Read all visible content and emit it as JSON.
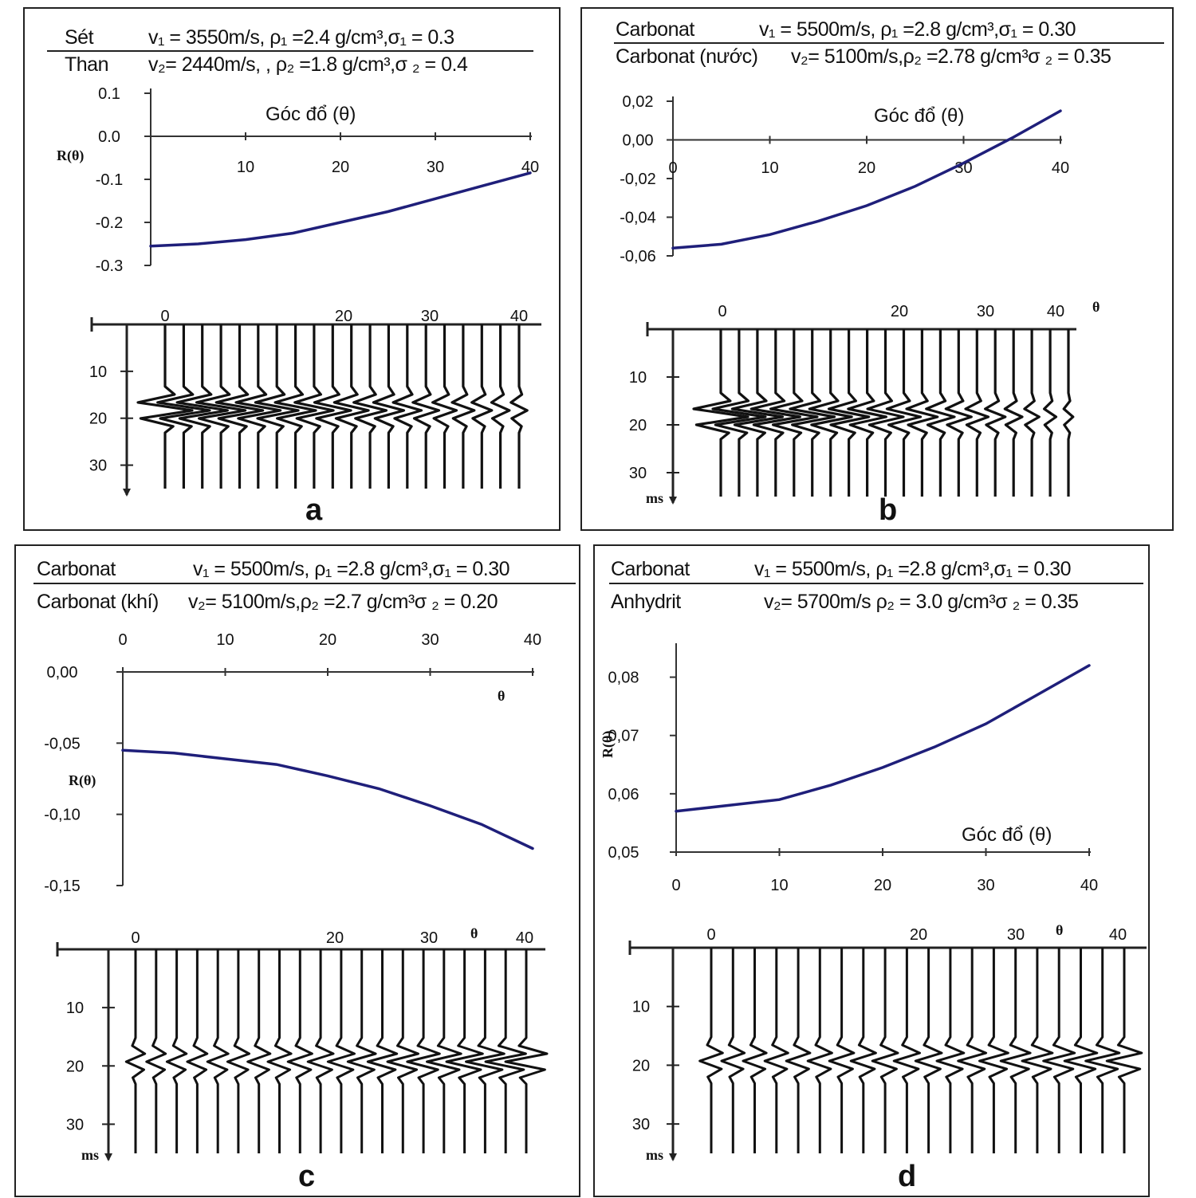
{
  "panels": [
    {
      "letter": "a",
      "upper": {
        "name": "Sét",
        "params": "v₁ = 3550m/s,  ρ₁ =2.4 g/cm³,σ₁ = 0.3"
      },
      "lower": {
        "name": "Than",
        "params": "v₂= 2440m/s, ,  ρ₂ =1.8 g/cm³,σ ₂ = 0.4"
      },
      "x_label": "Góc đổ (θ)",
      "y_label": "R(θ)",
      "y_tick_labels": [
        "0.1",
        "0.0",
        "-0.1",
        "-0.2",
        "-0.3"
      ],
      "x_tick_labels": [
        "10",
        "20",
        "30",
        "40"
      ],
      "trace_tick_labels": [
        "0",
        "20",
        "30",
        "40"
      ],
      "time_tick_labels": [
        "10",
        "20",
        "30"
      ]
    },
    {
      "letter": "b",
      "upper": {
        "name": "Carbonat",
        "params": "v₁ = 5500m/s,  ρ₁ =2.8 g/cm³,σ₁ = 0.30"
      },
      "lower": {
        "name": "Carbonat (nước)",
        "params": "v₂= 5100m/s,ρ₂ =2.78 g/cm³σ ₂ = 0.35"
      },
      "x_label": "Góc đổ (θ)",
      "y_tick_labels": [
        "0,02",
        "0,00",
        "-0,02",
        "-0,04",
        "-0,06"
      ],
      "x_tick_labels": [
        "0",
        "10",
        "20",
        "30",
        "40"
      ],
      "trace_tick_labels": [
        "0",
        "20",
        "30",
        "40"
      ],
      "trace_axis_label": "θ",
      "time_tick_labels": [
        "10",
        "20",
        "30"
      ],
      "time_unit": "ms"
    },
    {
      "letter": "c",
      "upper": {
        "name": "Carbonat",
        "params": "v₁ = 5500m/s,  ρ₁ =2.8 g/cm³,σ₁ = 0.30"
      },
      "lower": {
        "name": "Carbonat (khí)",
        "params": "v₂= 5100m/s,ρ₂ =2.7 g/cm³σ ₂ = 0.20"
      },
      "x_label": "θ",
      "y_label": "R(θ)",
      "y_tick_labels": [
        "0,00",
        "-0,05",
        "-0,10",
        "-0,15"
      ],
      "x_tick_labels": [
        "0",
        "10",
        "20",
        "30",
        "40"
      ],
      "trace_tick_labels": [
        "0",
        "20",
        "30",
        "40"
      ],
      "trace_axis_label": "θ",
      "time_tick_labels": [
        "10",
        "20",
        "30"
      ],
      "time_unit": "ms"
    },
    {
      "letter": "d",
      "upper": {
        "name": "Carbonat",
        "params": "v₁ = 5500m/s,  ρ₁ =2.8 g/cm³,σ₁ = 0.30"
      },
      "lower": {
        "name": "Anhydrit",
        "params": "v₂= 5700m/s ρ₂ = 3.0 g/cm³σ ₂ = 0.35"
      },
      "x_label": "Góc đổ (θ)",
      "y_label": "R(θ)",
      "y_tick_labels": [
        "0,08",
        "0,07",
        "0,06",
        "0,05"
      ],
      "x_tick_labels": [
        "0",
        "10",
        "20",
        "30",
        "40"
      ],
      "trace_tick_labels": [
        "0",
        "20",
        "30",
        "40"
      ],
      "trace_axis_label": "θ",
      "time_tick_labels": [
        "10",
        "20",
        "30"
      ],
      "time_unit": "ms"
    }
  ],
  "chart_data": [
    {
      "type": "line",
      "panel": "a",
      "x": [
        0,
        5,
        10,
        15,
        20,
        25,
        30,
        35,
        40
      ],
      "values": [
        -0.255,
        -0.25,
        -0.24,
        -0.225,
        -0.2,
        -0.175,
        -0.145,
        -0.115,
        -0.085
      ],
      "xlim": [
        0,
        40
      ],
      "ylim": [
        -0.3,
        0.1
      ],
      "xlabel": "Góc đổ (θ)",
      "ylabel": "R(θ)",
      "line_color": "#1f1f7a",
      "gather": {
        "traces": 20,
        "angle_range": [
          0,
          40
        ],
        "event_time_ms": 18,
        "event_amplitude": [
          1.0,
          0.96,
          0.93,
          0.9,
          0.86,
          0.82,
          0.79,
          0.75,
          0.71,
          0.67,
          0.63,
          0.6,
          0.56,
          0.52,
          0.48,
          0.44,
          0.41,
          0.37,
          0.33,
          0.3
        ]
      }
    },
    {
      "type": "line",
      "panel": "b",
      "x": [
        0,
        5,
        10,
        15,
        20,
        25,
        30,
        35,
        40
      ],
      "values": [
        -0.056,
        -0.054,
        -0.049,
        -0.042,
        -0.034,
        -0.024,
        -0.012,
        0.001,
        0.015
      ],
      "xlim": [
        0,
        40
      ],
      "ylim": [
        -0.06,
        0.02
      ],
      "xlabel": "Góc đổ (θ)",
      "ylabel": "",
      "line_color": "#1f1f7a",
      "gather": {
        "traces": 20,
        "angle_range": [
          0,
          40
        ],
        "event_time_ms": 18,
        "event_amplitude": [
          1.0,
          0.97,
          0.93,
          0.9,
          0.86,
          0.82,
          0.78,
          0.74,
          0.7,
          0.66,
          0.62,
          0.57,
          0.52,
          0.47,
          0.42,
          0.37,
          0.32,
          0.27,
          0.22,
          0.17
        ]
      }
    },
    {
      "type": "line",
      "panel": "c",
      "x": [
        0,
        5,
        10,
        15,
        20,
        25,
        30,
        35,
        40
      ],
      "values": [
        -0.055,
        -0.057,
        -0.061,
        -0.065,
        -0.073,
        -0.082,
        -0.094,
        -0.107,
        -0.124
      ],
      "xlim": [
        0,
        40
      ],
      "ylim": [
        -0.15,
        0.0
      ],
      "xlabel": "θ",
      "ylabel": "R(θ)",
      "line_color": "#1f1f7a",
      "gather": {
        "traces": 20,
        "angle_range": [
          0,
          40
        ],
        "event_time_ms": 19,
        "event_amplitude": [
          0.45,
          0.46,
          0.47,
          0.48,
          0.5,
          0.52,
          0.54,
          0.56,
          0.58,
          0.61,
          0.64,
          0.67,
          0.7,
          0.74,
          0.78,
          0.82,
          0.87,
          0.92,
          0.97,
          1.0
        ]
      }
    },
    {
      "type": "line",
      "panel": "d",
      "x": [
        0,
        5,
        10,
        15,
        20,
        25,
        30,
        35,
        40
      ],
      "values": [
        0.057,
        0.058,
        0.059,
        0.0615,
        0.0645,
        0.068,
        0.072,
        0.077,
        0.082
      ],
      "xlim": [
        0,
        40
      ],
      "ylim": [
        0.05,
        0.085
      ],
      "xlabel": "Góc đổ (θ)",
      "ylabel": "R(θ)",
      "line_color": "#1f1f7a",
      "gather": {
        "traces": 20,
        "angle_range": [
          0,
          40
        ],
        "event_time_ms": 19,
        "event_amplitude": [
          0.55,
          0.55,
          0.56,
          0.56,
          0.57,
          0.58,
          0.59,
          0.6,
          0.61,
          0.62,
          0.63,
          0.65,
          0.67,
          0.69,
          0.71,
          0.73,
          0.75,
          0.78,
          0.81,
          0.84
        ]
      }
    }
  ]
}
